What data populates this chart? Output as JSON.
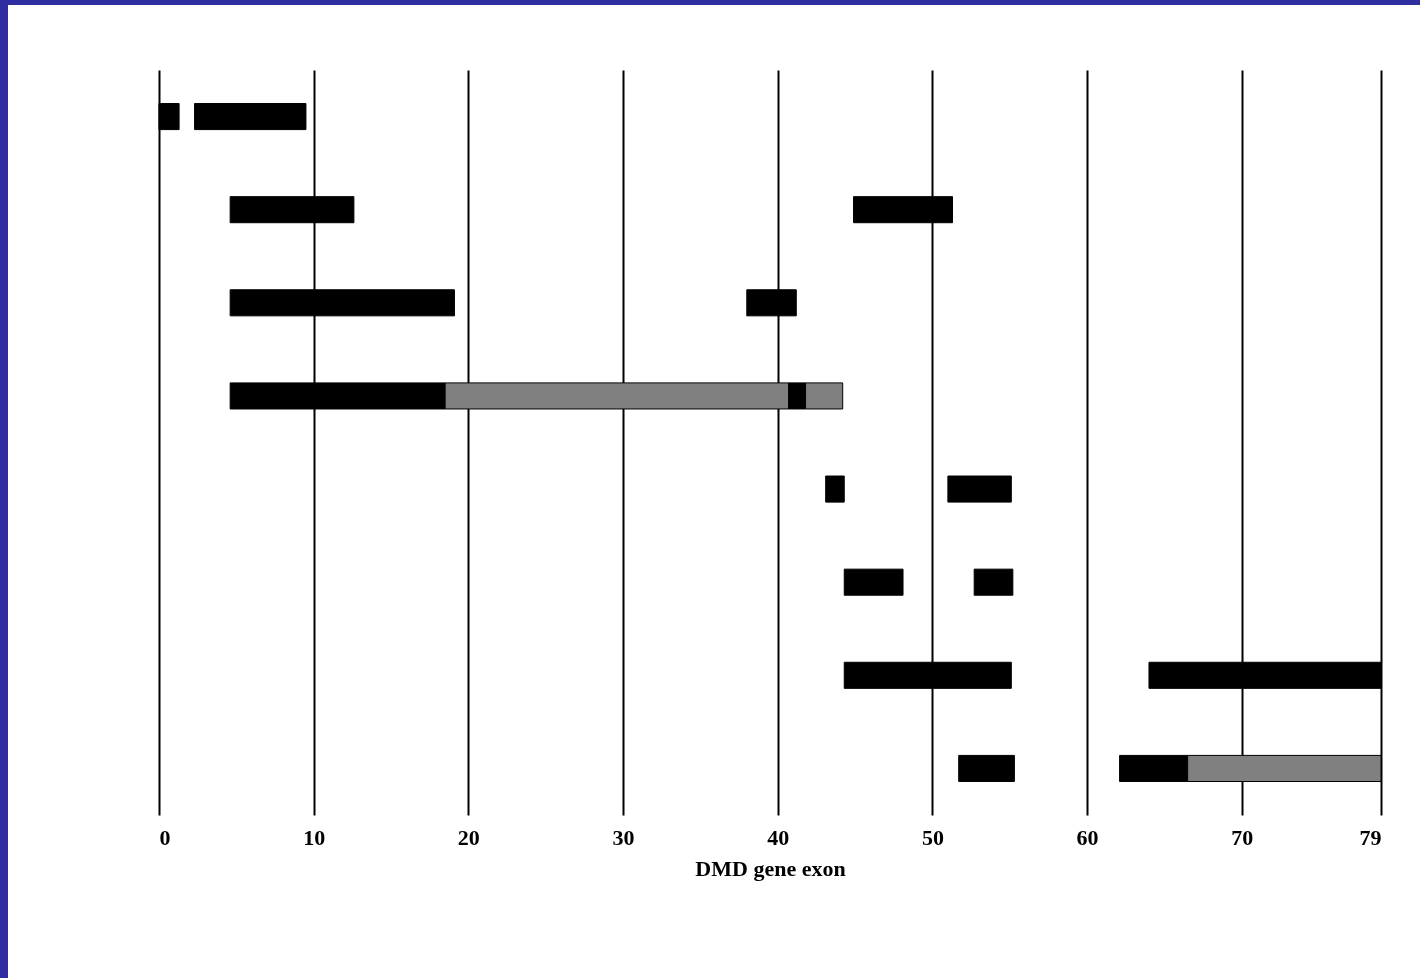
{
  "chart_data": {
    "type": "bar",
    "orientation": "horizontal",
    "xlabel": "DMD gene exon",
    "categories": [
      null,
      null,
      null,
      null,
      null,
      null,
      null,
      null
    ],
    "xlim": [
      0,
      79
    ],
    "xticks": [
      0,
      10,
      20,
      30,
      40,
      50,
      60,
      70,
      79
    ],
    "grid": "x",
    "tick_labels": "x",
    "series": [
      {
        "color": "#000000",
        "base": [
          0,
          4.6,
          4.6,
          4.6,
          43.1,
          44.3,
          44.3,
          51.7
        ],
        "values": [
          1.3,
          8.0,
          14.5,
          13.9,
          1.2,
          3.8,
          10.8,
          3.6
        ]
      },
      {
        "color": "#000000",
        "base": [
          2.3,
          44.9,
          38.0,
          40.7,
          51.0,
          52.7,
          64.0,
          62.1
        ],
        "values": [
          7.2,
          6.4,
          3.2,
          1.1,
          4.1,
          2.5,
          15.0,
          4.4
        ]
      },
      {
        "color": "#808080",
        "base": [
          null,
          null,
          null,
          18.5,
          null,
          null,
          null,
          66.5
        ],
        "values": [
          null,
          null,
          null,
          22.2,
          null,
          null,
          null,
          12.5
        ]
      },
      {
        "color": "#808080",
        "base": [
          null,
          null,
          null,
          41.8,
          null,
          null,
          null,
          null
        ],
        "values": [
          null,
          null,
          null,
          2.4,
          null,
          null,
          null,
          null
        ]
      }
    ]
  }
}
